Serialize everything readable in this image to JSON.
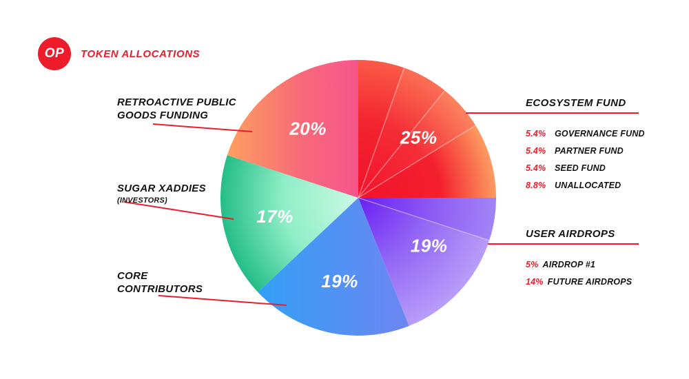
{
  "header": {
    "logo_text": "OP",
    "title": "TOKEN ALLOCATIONS"
  },
  "colors": {
    "accent_red": "#ee1c2b",
    "text_black": "#131313",
    "background": "#ffffff",
    "percent_text": "#ffffff"
  },
  "labels": {
    "retro": {
      "line1": "RETROACTIVE PUBLIC",
      "line2": "GOODS FUNDING"
    },
    "sugar": {
      "line1": "SUGAR XADDIES",
      "line2": "(INVESTORS)"
    },
    "core": {
      "line1": "CORE",
      "line2": "CONTRIBUTORS"
    },
    "ecosystem_heading": "ECOSYSTEM FUND",
    "airdrops_heading": "USER AIRDROPS"
  },
  "chart_data": {
    "type": "pie",
    "title": "OP Token Allocations",
    "direction": "clockwise",
    "start_angle_deg": 0,
    "total": 100,
    "slices": [
      {
        "name": "ECOSYSTEM FUND",
        "value": 25,
        "display": "25%",
        "sub": [
          {
            "name": "GOVERNANCE FUND",
            "value": 5.4,
            "display": "5.4%",
            "fill": {
              "kind": "radial",
              "stops": [
                [
                  0,
                  "#f2122c"
                ],
                [
                  0.55,
                  "#f3242f"
                ],
                [
                  1,
                  "#fa5a49"
                ]
              ]
            }
          },
          {
            "name": "PARTNER FUND",
            "value": 5.4,
            "display": "5.4%",
            "fill": {
              "kind": "radial",
              "stops": [
                [
                  0,
                  "#f2122c"
                ],
                [
                  0.55,
                  "#f42c35"
                ],
                [
                  1,
                  "#fb7055"
                ]
              ]
            }
          },
          {
            "name": "SEED FUND",
            "value": 5.4,
            "display": "5.4%",
            "fill": {
              "kind": "radial",
              "stops": [
                [
                  0,
                  "#f2122c"
                ],
                [
                  0.55,
                  "#f42f38"
                ],
                [
                  1,
                  "#fc845f"
                ]
              ]
            }
          },
          {
            "name": "UNALLOCATED",
            "value": 8.8,
            "display": "8.8%",
            "fill": {
              "kind": "radial",
              "stops": [
                [
                  0,
                  "#f2122c"
                ],
                [
                  0.6,
                  "#f3202e"
                ],
                [
                  1,
                  "#fd9c61"
                ]
              ]
            }
          }
        ]
      },
      {
        "name": "USER AIRDROPS",
        "value": 19,
        "display": "19%",
        "sub": [
          {
            "name": "AIRDROP #1",
            "value": 5,
            "display": "5%",
            "fill": {
              "kind": "radial",
              "stops": [
                [
                  0,
                  "#6a1ef2"
                ],
                [
                  0.55,
                  "#8e5bf4"
                ],
                [
                  1,
                  "#a184f6"
                ]
              ]
            }
          },
          {
            "name": "FUTURE AIRDROPS",
            "value": 14,
            "display": "14%",
            "fill": {
              "kind": "radial",
              "stops": [
                [
                  0,
                  "#6a1ef2"
                ],
                [
                  0.5,
                  "#9266f5"
                ],
                [
                  1,
                  "#b89df9"
                ]
              ]
            }
          }
        ]
      },
      {
        "name": "CORE CONTRIBUTORS",
        "value": 19,
        "display": "19%",
        "fill": {
          "kind": "linear",
          "stops": [
            [
              0,
              "#25a7f6"
            ],
            [
              0.55,
              "#5f8cf3"
            ],
            [
              1,
              "#8f78f1"
            ]
          ]
        }
      },
      {
        "name": "SUGAR XADDIES (INVESTORS)",
        "value": 17,
        "display": "17%",
        "fill": {
          "kind": "radial",
          "stops": [
            [
              0,
              "#cdf9e5"
            ],
            [
              0.55,
              "#8feec7"
            ],
            [
              1,
              "#24bd88"
            ]
          ]
        }
      },
      {
        "name": "RETROACTIVE PUBLIC GOODS FUNDING",
        "value": 20,
        "display": "20%",
        "fill": {
          "kind": "linear",
          "stops": [
            [
              0,
              "#ffa45c"
            ],
            [
              0.3,
              "#f8697a"
            ],
            [
              0.62,
              "#f64a97"
            ],
            [
              1,
              "#f733a8"
            ]
          ]
        }
      }
    ]
  }
}
